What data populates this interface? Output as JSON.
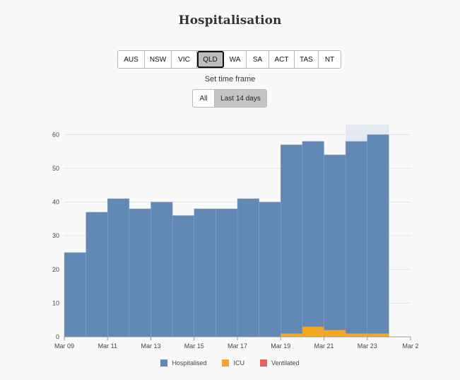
{
  "header": {
    "title": "Hospitalisation"
  },
  "regions": {
    "selected": "QLD",
    "items": [
      {
        "label": "AUS"
      },
      {
        "label": "NSW"
      },
      {
        "label": "VIC"
      },
      {
        "label": "QLD"
      },
      {
        "label": "WA"
      },
      {
        "label": "SA"
      },
      {
        "label": "ACT"
      },
      {
        "label": "TAS"
      },
      {
        "label": "NT"
      }
    ]
  },
  "timeframe": {
    "label": "Set time frame",
    "selected": "Last 14 days",
    "options": [
      {
        "label": "All"
      },
      {
        "label": "Last 14 days"
      }
    ]
  },
  "colors": {
    "hospitalised": "#6288b5",
    "icu": "#f5a623",
    "ventilated": "#e8605a",
    "projection": "#e3e8f1",
    "grid": "#e6e6e6",
    "axis": "#999999"
  },
  "chart_data": {
    "type": "bar",
    "stacked": true,
    "categories": [
      "Mar 09",
      "Mar 10",
      "Mar 11",
      "Mar 12",
      "Mar 13",
      "Mar 14",
      "Mar 15",
      "Mar 16",
      "Mar 17",
      "Mar 18",
      "Mar 19",
      "Mar 20",
      "Mar 21",
      "Mar 22",
      "Mar 23"
    ],
    "series": [
      {
        "name": "Hospitalised",
        "values": [
          25,
          37,
          41,
          38,
          40,
          36,
          38,
          38,
          41,
          40,
          57,
          58,
          54,
          58,
          60
        ]
      },
      {
        "name": "ICU",
        "values": [
          0,
          0,
          0,
          0,
          0,
          0,
          0,
          0,
          0,
          0,
          1,
          3,
          2,
          1,
          1
        ]
      },
      {
        "name": "Ventilated",
        "values": [
          0,
          0,
          0,
          0,
          0,
          0,
          0,
          0,
          0,
          0,
          0,
          0,
          0,
          0,
          0
        ]
      }
    ],
    "x_tick_labels": [
      "Mar 09",
      "Mar 11",
      "Mar 13",
      "Mar 15",
      "Mar 17",
      "Mar 19",
      "Mar 21",
      "Mar 23",
      "Mar 2"
    ],
    "y_ticks": [
      0,
      10,
      20,
      30,
      40,
      50,
      60
    ],
    "ylim": [
      0,
      63
    ],
    "xlabel": "",
    "ylabel": "",
    "grid": true,
    "legend_position": "bottom",
    "shaded_region": {
      "from_index": 13,
      "to_index": 15
    }
  }
}
